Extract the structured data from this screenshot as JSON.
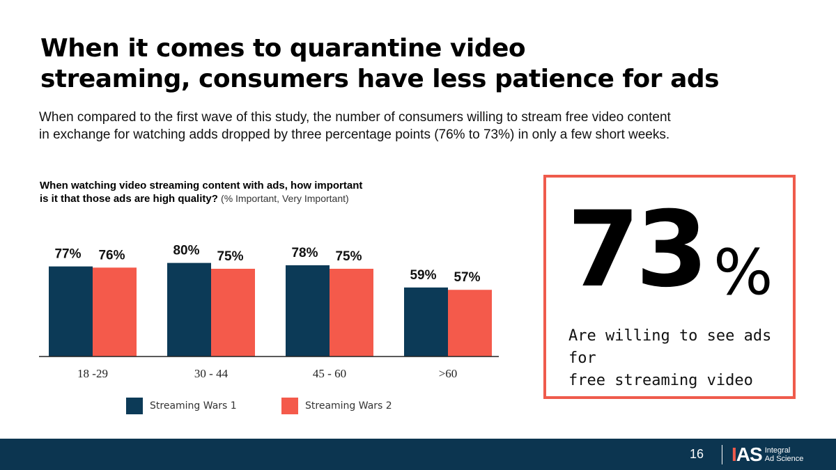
{
  "slide": {
    "title_line1": "When it comes to quarantine video",
    "title_line2": "streaming, consumers have less patience for ads",
    "subtitle_line1": "When compared to the first wave of this study, the number of consumers willing to stream free video content",
    "subtitle_line2": "in exchange for watching adds dropped by three percentage points (76% to 73%) in only a few short weeks.",
    "question_line1": "When watching video streaming content with ads, how important",
    "question_line2_bold": "is it that those ads are high quality?",
    "question_line2_note": "(% Important, Very Important)"
  },
  "stat": {
    "number": "73",
    "unit": "%",
    "caption_line1": "Are willing to see ads for",
    "caption_line2": "free streaming video"
  },
  "footer": {
    "page_number": "16",
    "logo_mark_a": "I",
    "logo_mark_b": "AS",
    "logo_text_1": "Integral",
    "logo_text_2": "Ad Science"
  },
  "colors": {
    "series1": "#0c3a57",
    "series2": "#f45a4b",
    "box_border": "#ef5b4c",
    "footer_bg": "#0c3550"
  },
  "chart_data": {
    "type": "bar",
    "categories": [
      "18 -29",
      "30 - 44",
      "45 - 60",
      ">60"
    ],
    "series": [
      {
        "name": "Streaming Wars 1",
        "values": [
          77,
          80,
          78,
          59
        ],
        "labels": [
          "77%",
          "80%",
          "78%",
          "59%"
        ]
      },
      {
        "name": "Streaming Wars 2",
        "values": [
          76,
          75,
          75,
          57
        ],
        "labels": [
          "76%",
          "75%",
          "75%",
          "57%"
        ]
      }
    ],
    "ylim": [
      0,
      100
    ],
    "grid": false,
    "legend": "bottom"
  }
}
